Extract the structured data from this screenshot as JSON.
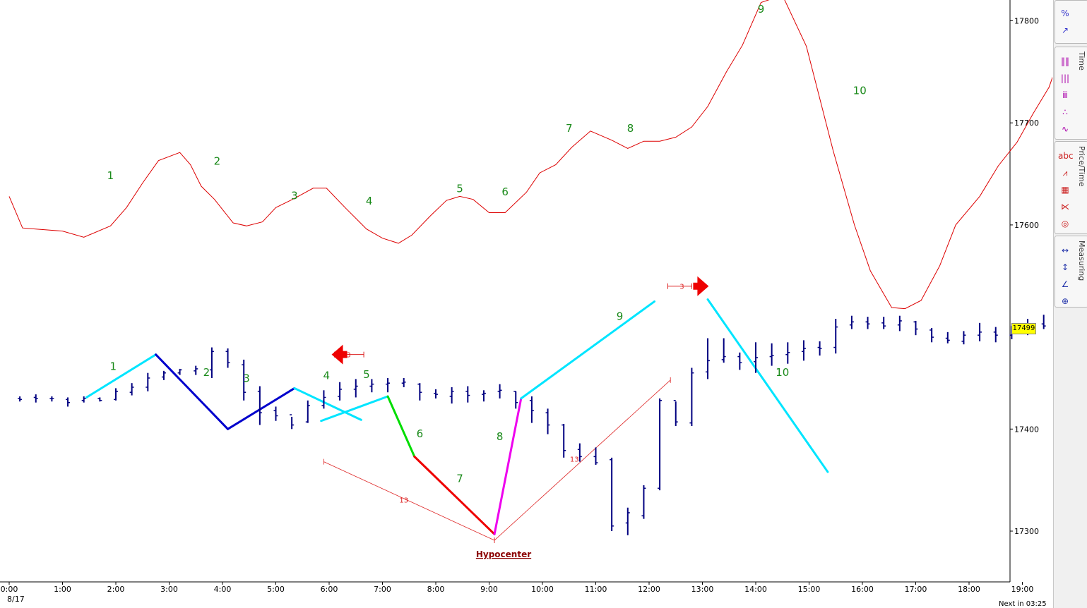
{
  "chart_data": {
    "type": "line",
    "date_label": "8/17",
    "x_ticks": [
      "0:00",
      "1:00",
      "2:00",
      "3:00",
      "4:00",
      "5:00",
      "6:00",
      "7:00",
      "8:00",
      "9:00",
      "10:00",
      "11:00",
      "12:00",
      "13:00",
      "14:00",
      "15:00",
      "16:00",
      "17:00",
      "18:00",
      "19:00"
    ],
    "y_ticks": [
      17300,
      17400,
      17600,
      17700,
      17800
    ],
    "ylim": [
      17230,
      17820
    ],
    "last_price": "17499",
    "oscillator": {
      "color": "#dd0000",
      "points": [
        [
          0,
          17628
        ],
        [
          0.25,
          17597
        ],
        [
          0.5,
          17596
        ],
        [
          1.0,
          17594
        ],
        [
          1.4,
          17588
        ],
        [
          1.9,
          17599
        ],
        [
          2.2,
          17617
        ],
        [
          2.5,
          17641
        ],
        [
          2.8,
          17663
        ],
        [
          3.2,
          17671
        ],
        [
          3.4,
          17659
        ],
        [
          3.6,
          17638
        ],
        [
          3.85,
          17625
        ],
        [
          4.2,
          17602
        ],
        [
          4.45,
          17599
        ],
        [
          4.75,
          17603
        ],
        [
          5.0,
          17617
        ],
        [
          5.35,
          17626
        ],
        [
          5.7,
          17636
        ],
        [
          5.95,
          17636
        ],
        [
          6.3,
          17617
        ],
        [
          6.7,
          17596
        ],
        [
          7.0,
          17587
        ],
        [
          7.3,
          17582
        ],
        [
          7.55,
          17590
        ],
        [
          7.9,
          17609
        ],
        [
          8.2,
          17624
        ],
        [
          8.45,
          17628
        ],
        [
          8.7,
          17625
        ],
        [
          9.0,
          17612
        ],
        [
          9.3,
          17612
        ],
        [
          9.7,
          17632
        ],
        [
          9.95,
          17651
        ],
        [
          10.25,
          17659
        ],
        [
          10.55,
          17676
        ],
        [
          10.9,
          17692
        ],
        [
          11.3,
          17683
        ],
        [
          11.6,
          17675
        ],
        [
          11.9,
          17682
        ],
        [
          12.2,
          17682
        ],
        [
          12.5,
          17686
        ],
        [
          12.8,
          17696
        ],
        [
          13.1,
          17716
        ],
        [
          13.45,
          17750
        ],
        [
          13.75,
          17776
        ],
        [
          14.1,
          17818
        ],
        [
          14.5,
          17825
        ],
        [
          14.95,
          17775
        ],
        [
          15.45,
          17673
        ],
        [
          15.85,
          17600
        ],
        [
          16.15,
          17555
        ],
        [
          16.35,
          17537
        ],
        [
          16.55,
          17519
        ],
        [
          16.8,
          17518
        ],
        [
          17.1,
          17526
        ],
        [
          17.45,
          17560
        ],
        [
          17.75,
          17600
        ],
        [
          18.2,
          17628
        ],
        [
          18.55,
          17658
        ],
        [
          18.9,
          17681
        ],
        [
          19.2,
          17709
        ],
        [
          19.5,
          17735
        ],
        [
          19.8,
          17780
        ],
        [
          20.1,
          17790
        ],
        [
          20.45,
          17774
        ]
      ]
    },
    "oscillator_labels": [
      {
        "t": "1",
        "x": 1.9,
        "y": 17645
      },
      {
        "t": "2",
        "x": 3.9,
        "y": 17659
      },
      {
        "t": "3",
        "x": 5.35,
        "y": 17625
      },
      {
        "t": "4",
        "x": 6.75,
        "y": 17620
      },
      {
        "t": "5",
        "x": 8.45,
        "y": 17632
      },
      {
        "t": "6",
        "x": 9.3,
        "y": 17629
      },
      {
        "t": "7",
        "x": 10.5,
        "y": 17691
      },
      {
        "t": "8",
        "x": 11.65,
        "y": 17691
      },
      {
        "t": "9",
        "x": 14.1,
        "y": 17808
      },
      {
        "t": "10",
        "x": 15.95,
        "y": 17728
      }
    ],
    "bars": [
      [
        0.2,
        17430,
        17427,
        17432,
        17429
      ],
      [
        0.5,
        17431,
        17426,
        17434,
        17430
      ],
      [
        0.8,
        17430,
        17427,
        17432,
        17430
      ],
      [
        1.1,
        17429,
        17422,
        17431,
        17426
      ],
      [
        1.4,
        17428,
        17426,
        17432,
        17430
      ],
      [
        1.7,
        17430,
        17427,
        17431,
        17428
      ],
      [
        2.0,
        17429,
        17428,
        17440,
        17437
      ],
      [
        2.3,
        17436,
        17433,
        17445,
        17441
      ],
      [
        2.6,
        17441,
        17437,
        17455,
        17450
      ],
      [
        2.9,
        17451,
        17448,
        17457,
        17455
      ],
      [
        3.2,
        17455,
        17453,
        17459,
        17458
      ],
      [
        3.5,
        17457,
        17453,
        17462,
        17459
      ],
      [
        3.8,
        17458,
        17450,
        17480,
        17476
      ],
      [
        4.1,
        17476,
        17460,
        17479,
        17465
      ],
      [
        4.4,
        17463,
        17428,
        17468,
        17436
      ],
      [
        4.7,
        17437,
        17404,
        17442,
        17416
      ],
      [
        5.0,
        17418,
        17408,
        17422,
        17413
      ],
      [
        5.3,
        17414,
        17400,
        17412,
        17404
      ],
      [
        5.6,
        17407,
        17406,
        17428,
        17423
      ],
      [
        5.9,
        17423,
        17420,
        17438,
        17431
      ],
      [
        6.2,
        17432,
        17428,
        17446,
        17439
      ],
      [
        6.5,
        17439,
        17431,
        17449,
        17442
      ],
      [
        6.8,
        17442,
        17436,
        17449,
        17444
      ],
      [
        7.1,
        17444,
        17436,
        17450,
        17445
      ],
      [
        7.4,
        17445,
        17441,
        17450,
        17446
      ],
      [
        7.7,
        17444,
        17428,
        17445,
        17436
      ],
      [
        8.0,
        17435,
        17430,
        17439,
        17434
      ],
      [
        8.3,
        17432,
        17425,
        17441,
        17437
      ],
      [
        8.6,
        17437,
        17426,
        17442,
        17433
      ],
      [
        8.9,
        17434,
        17427,
        17438,
        17435
      ],
      [
        9.2,
        17437,
        17430,
        17444,
        17438
      ],
      [
        9.5,
        17437,
        17420,
        17437,
        17426
      ],
      [
        9.8,
        17428,
        17406,
        17432,
        17418
      ],
      [
        10.1,
        17416,
        17395,
        17420,
        17404
      ],
      [
        10.4,
        17404,
        17372,
        17405,
        17379
      ],
      [
        10.7,
        17380,
        17368,
        17386,
        17373
      ],
      [
        11.0,
        17373,
        17365,
        17382,
        17367
      ],
      [
        11.3,
        17370,
        17300,
        17372,
        17305
      ],
      [
        11.6,
        17308,
        17296,
        17323,
        17318
      ],
      [
        11.9,
        17315,
        17312,
        17345,
        17342
      ],
      [
        12.2,
        17342,
        17340,
        17430,
        17428
      ],
      [
        12.5,
        17428,
        17403,
        17427,
        17407
      ],
      [
        12.8,
        17406,
        17403,
        17460,
        17455
      ],
      [
        13.1,
        17456,
        17449,
        17489,
        17467
      ],
      [
        13.4,
        17468,
        17465,
        17489,
        17471
      ],
      [
        13.7,
        17471,
        17458,
        17475,
        17465
      ],
      [
        14.0,
        17466,
        17455,
        17485,
        17470
      ],
      [
        14.3,
        17471,
        17462,
        17484,
        17472
      ],
      [
        14.6,
        17473,
        17464,
        17485,
        17475
      ],
      [
        14.9,
        17476,
        17467,
        17487,
        17479
      ],
      [
        15.2,
        17480,
        17472,
        17486,
        17479
      ],
      [
        15.5,
        17480,
        17474,
        17508,
        17500
      ],
      [
        15.8,
        17502,
        17498,
        17511,
        17505
      ],
      [
        16.1,
        17505,
        17498,
        17510,
        17503
      ],
      [
        16.4,
        17504,
        17498,
        17510,
        17501
      ],
      [
        16.7,
        17502,
        17496,
        17511,
        17506
      ],
      [
        17.0,
        17505,
        17492,
        17506,
        17498
      ],
      [
        17.3,
        17497,
        17485,
        17499,
        17490
      ],
      [
        17.6,
        17489,
        17484,
        17495,
        17487
      ],
      [
        17.9,
        17486,
        17483,
        17496,
        17492
      ],
      [
        18.2,
        17492,
        17486,
        17504,
        17495
      ],
      [
        18.5,
        17495,
        17485,
        17500,
        17492
      ],
      [
        18.8,
        17492,
        17488,
        17501,
        17497
      ],
      [
        19.1,
        17497,
        17492,
        17508,
        17503
      ],
      [
        19.4,
        17503,
        17498,
        17512,
        17501
      ],
      [
        19.7,
        17500,
        17497,
        17501,
        17498
      ],
      [
        20.0,
        17499,
        17498,
        17501,
        17500
      ],
      [
        20.3,
        17499,
        17496,
        17500,
        17498
      ]
    ],
    "bar_pattern": [
      {
        "seg": [
          [
            1.45,
            17431
          ],
          [
            2.75,
            17473
          ]
        ],
        "color": "#00e5ff",
        "w": 3
      },
      {
        "seg": [
          [
            2.75,
            17473
          ],
          [
            4.1,
            17400
          ]
        ],
        "color": "#0000cc",
        "w": 3
      },
      {
        "seg": [
          [
            4.1,
            17400
          ],
          [
            5.35,
            17440
          ]
        ],
        "color": "#0000cc",
        "w": 3
      },
      {
        "seg": [
          [
            5.35,
            17440
          ],
          [
            6.6,
            17409
          ]
        ],
        "color": "#00e5ff",
        "w": 3
      },
      {
        "seg": [
          [
            5.85,
            17408
          ],
          [
            7.1,
            17432
          ]
        ],
        "color": "#00e5ff",
        "w": 3
      },
      {
        "seg": [
          [
            7.1,
            17432
          ],
          [
            7.6,
            17373
          ]
        ],
        "color": "#00dd00",
        "w": 3
      },
      {
        "seg": [
          [
            7.6,
            17373
          ],
          [
            9.1,
            17297
          ]
        ],
        "color": "#ee0000",
        "w": 3
      },
      {
        "seg": [
          [
            9.1,
            17297
          ],
          [
            9.6,
            17430
          ]
        ],
        "color": "#ee00ee",
        "w": 3
      },
      {
        "seg": [
          [
            9.6,
            17430
          ],
          [
            12.1,
            17525
          ]
        ],
        "color": "#00e5ff",
        "w": 3
      },
      {
        "seg": [
          [
            13.1,
            17527
          ],
          [
            15.35,
            17358
          ]
        ],
        "color": "#00e5ff",
        "w": 3
      }
    ],
    "bar_labels": [
      {
        "t": "1",
        "x": 1.95,
        "y": 17458
      },
      {
        "t": "2",
        "x": 3.7,
        "y": 17452
      },
      {
        "t": "3",
        "x": 4.45,
        "y": 17446
      },
      {
        "t": "4",
        "x": 5.95,
        "y": 17449
      },
      {
        "t": "5",
        "x": 6.7,
        "y": 17450
      },
      {
        "t": "6",
        "x": 7.7,
        "y": 17392
      },
      {
        "t": "7",
        "x": 8.45,
        "y": 17348
      },
      {
        "t": "8",
        "x": 9.2,
        "y": 17389
      },
      {
        "t": "9",
        "x": 11.45,
        "y": 17507
      },
      {
        "t": "10",
        "x": 14.5,
        "y": 17452
      }
    ],
    "range_lines": [
      {
        "seg": [
          [
            5.9,
            17368
          ],
          [
            9.1,
            17291
          ]
        ],
        "label": "13",
        "lx": 7.4,
        "ly": 17328
      },
      {
        "seg": [
          [
            9.1,
            17291
          ],
          [
            12.4,
            17448
          ]
        ],
        "label": "13",
        "lx": 10.6,
        "ly": 17368
      }
    ],
    "marker_boxes": [
      {
        "x1": 6.1,
        "x2": 6.65,
        "y": 17473,
        "label": "3",
        "dir": "left"
      },
      {
        "x1": 12.35,
        "x2": 12.8,
        "y": 17540,
        "label": "3",
        "dir": "right"
      }
    ],
    "hypocenter_label": "Hypocenter",
    "projection": [
      20.55,
      17499
    ]
  },
  "status": {
    "next_in": "Next in 03:25"
  },
  "toolbar": {
    "groups": [
      {
        "title": "",
        "items": [
          {
            "icon": "percent-icon",
            "glyph": "%"
          },
          {
            "icon": "trend-icon",
            "glyph": "↗"
          }
        ]
      },
      {
        "title": "Time",
        "items": [
          {
            "icon": "time-bars-icon",
            "glyph": "‖‖"
          },
          {
            "icon": "time-cycles-icon",
            "glyph": "|||"
          },
          {
            "icon": "time-pattern-icon",
            "glyph": "ⅲ"
          },
          {
            "icon": "time-ratio-icon",
            "glyph": "∴"
          },
          {
            "icon": "time-wave-icon",
            "glyph": "∿"
          }
        ]
      },
      {
        "title": "Price/Time",
        "items": [
          {
            "icon": "text-abc-icon",
            "glyph": "abc"
          },
          {
            "icon": "price-wave-icon",
            "glyph": "⩘"
          },
          {
            "icon": "grid-box-icon",
            "glyph": "▦"
          },
          {
            "icon": "fan-icon",
            "glyph": "⋉"
          },
          {
            "icon": "spiral-icon",
            "glyph": "◎"
          }
        ]
      },
      {
        "title": "Measuring",
        "items": [
          {
            "icon": "measure-h-icon",
            "glyph": "↔"
          },
          {
            "icon": "measure-v-icon",
            "glyph": "↕"
          },
          {
            "icon": "measure-angle-icon",
            "glyph": "∠"
          },
          {
            "icon": "crosshair-icon",
            "glyph": "⊕"
          }
        ]
      }
    ]
  }
}
